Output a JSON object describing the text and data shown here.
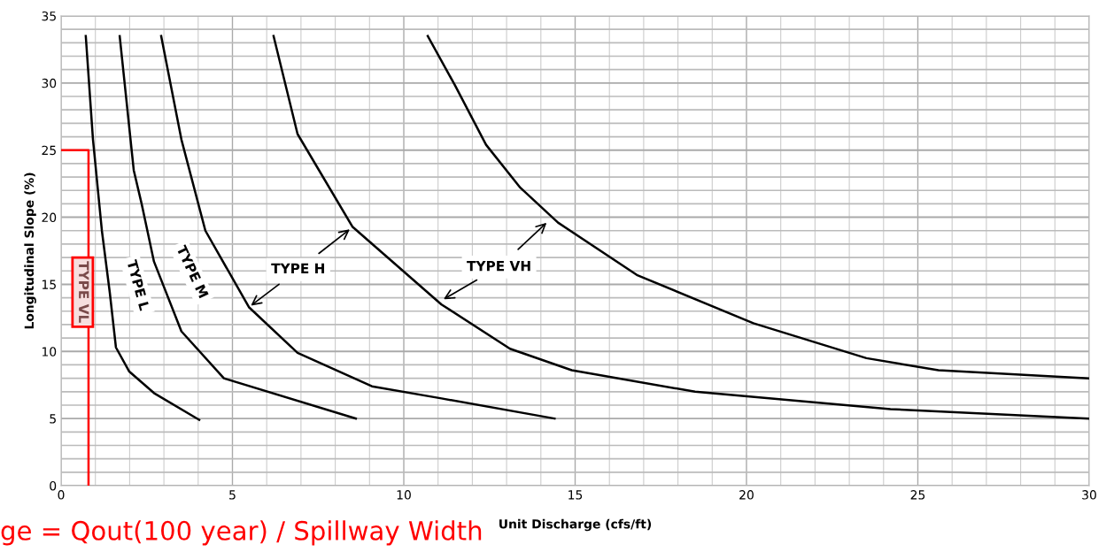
{
  "chart_data": {
    "type": "line",
    "xlabel": "Unit Discharge (cfs/ft)",
    "ylabel": "Longitudinal Slope (%)",
    "xlim": [
      0,
      30
    ],
    "xticks": [
      0,
      5,
      10,
      15,
      20,
      25,
      30
    ],
    "ylim": [
      0,
      35
    ],
    "yticks": [
      0,
      5,
      10,
      15,
      20,
      25,
      30,
      35
    ],
    "grid": true,
    "marker": "none",
    "line_style": "solid",
    "series": [
      {
        "color": "#000000",
        "x": [
          0.72,
          0.93,
          1.19,
          1.42,
          1.6,
          1.99,
          2.71,
          4.03
        ],
        "values": [
          33.5,
          25.8,
          19,
          14.4,
          10.3,
          8.5,
          6.9,
          4.9
        ]
      },
      {
        "color": "#000000",
        "x": [
          1.71,
          2.12,
          2.35,
          2.71,
          3.51,
          4.75,
          8.6
        ],
        "values": [
          33.5,
          23.5,
          21,
          16.7,
          11.5,
          8.0,
          5.0
        ]
      },
      {
        "color": "#000000",
        "x": [
          2.92,
          3.51,
          4.21,
          5.48,
          6.9,
          9.07,
          11.1,
          14.4
        ],
        "values": [
          33.5,
          25.8,
          19,
          13.3,
          9.9,
          7.4,
          6.5,
          5.0
        ]
      },
      {
        "color": "#000000",
        "x": [
          6.2,
          6.9,
          8.5,
          11.1,
          13.1,
          14.9,
          18.5,
          24.2,
          30
        ],
        "values": [
          33.5,
          26.2,
          19.3,
          13.5,
          10.2,
          8.6,
          7.0,
          5.7,
          5.0
        ]
      },
      {
        "color": "#000000",
        "x": [
          10.7,
          11.5,
          12.4,
          13.4,
          14.5,
          16.8,
          20.2,
          23.5,
          25.6,
          30
        ],
        "values": [
          33.5,
          29.8,
          25.4,
          22.2,
          19.6,
          15.7,
          12.1,
          9.5,
          8.6,
          8.0
        ]
      },
      {
        "color": "#ff0000",
        "x": [
          0,
          0.8,
          0.8
        ],
        "values": [
          25,
          25,
          0
        ]
      }
    ],
    "annotations": [
      "TYPE VL",
      "TYPE L",
      "TYPE M",
      {
        "text": "TYPE H",
        "x": 5.48,
        "y": 13.3
      },
      {
        "text": "TYPE VH",
        "x": 11.1,
        "y": 13.8
      },
      "ge = Qout(100 year) / Spillway Width"
    ]
  }
}
